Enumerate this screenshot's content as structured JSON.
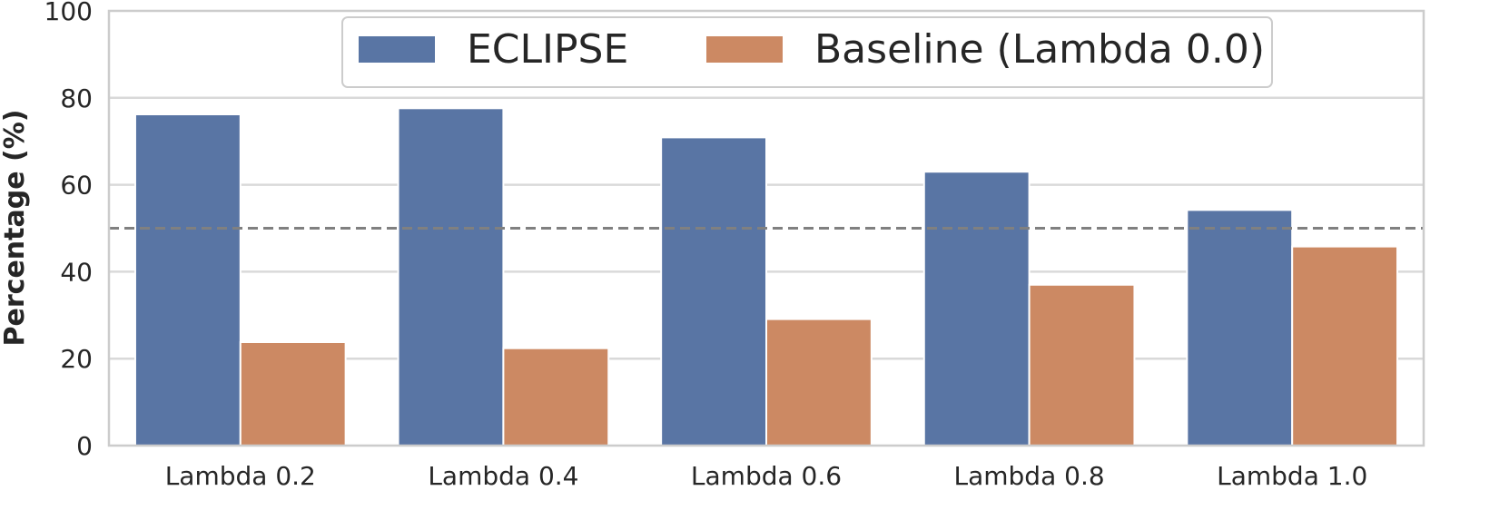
{
  "chart_data": {
    "type": "bar",
    "categories": [
      "Lambda 0.2",
      "Lambda 0.4",
      "Lambda 0.6",
      "Lambda 0.8",
      "Lambda 1.0"
    ],
    "series": [
      {
        "name": "ECLIPSE",
        "color": "#5975a4",
        "values": [
          76.2,
          77.6,
          70.9,
          63.0,
          54.2
        ]
      },
      {
        "name": "Baseline (Lambda 0.0)",
        "color": "#cc8963",
        "values": [
          23.8,
          22.4,
          29.1,
          37.0,
          45.8
        ]
      }
    ],
    "title": "",
    "xlabel": "",
    "ylabel": "Percentage (%)",
    "ylim": [
      0,
      100
    ],
    "yticks": [
      0,
      20,
      40,
      60,
      80,
      100
    ],
    "reference_line": {
      "value": 50,
      "style": "dashed",
      "color": "#808080"
    },
    "grid": true,
    "legend_position": "top-center"
  }
}
